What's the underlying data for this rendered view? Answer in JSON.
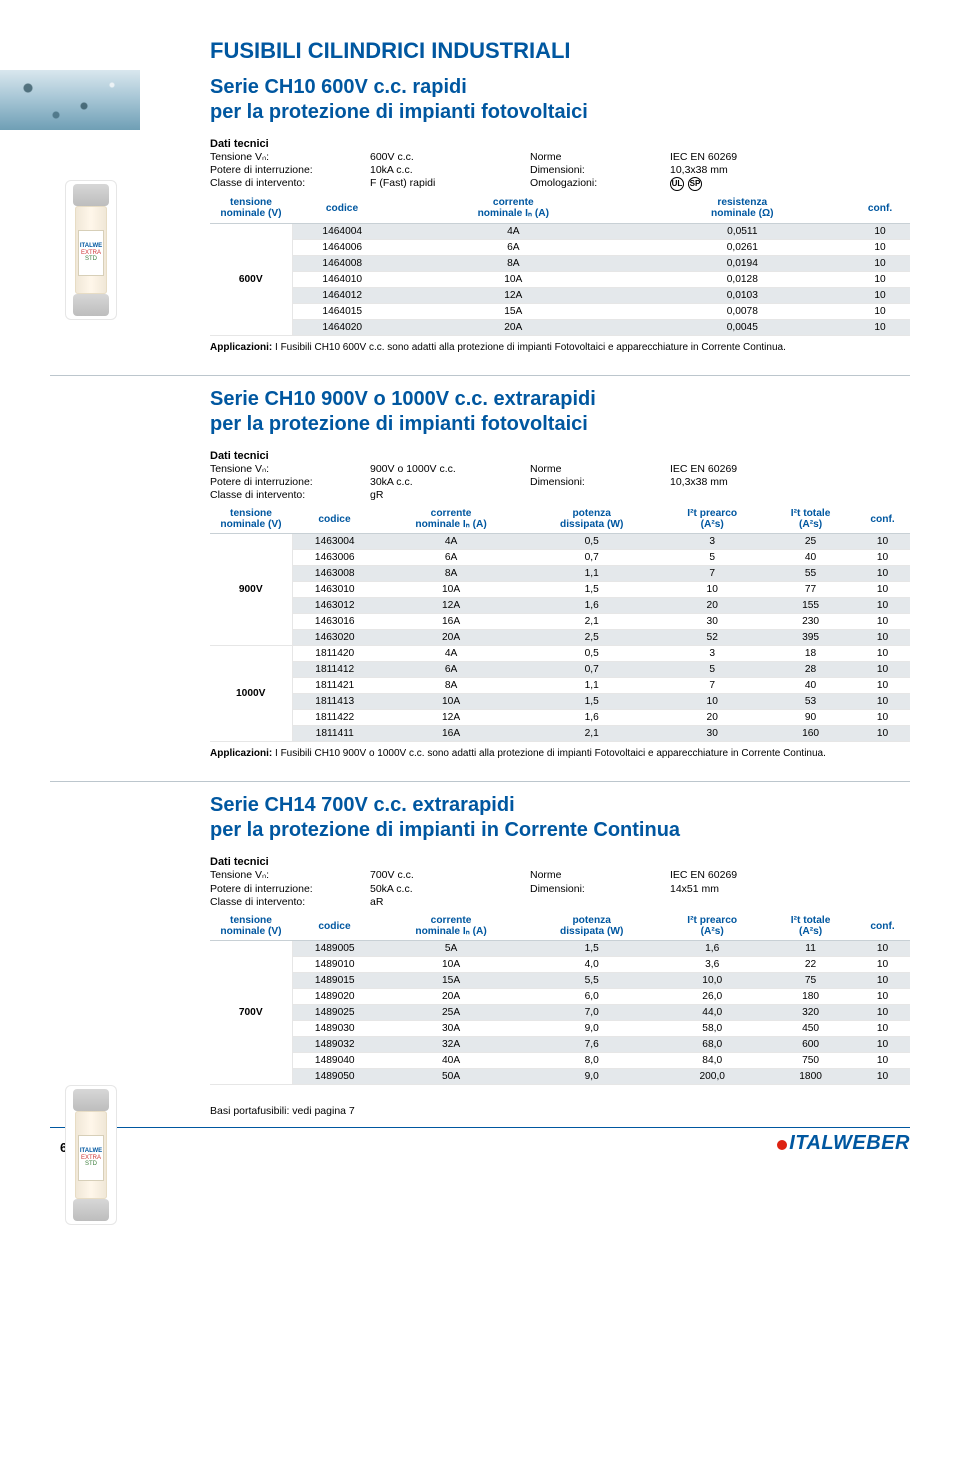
{
  "page": {
    "title": "FUSIBILI CILINDRICI INDUSTRIALI",
    "footer_page": "6",
    "brand_name": "ITALWEBER",
    "basi_text": "Basi portafusibili: vedi pagina 7"
  },
  "colors": {
    "heading": "#0057a0",
    "row_alt": "#e4e8eb",
    "rule": "#bcc6cd",
    "brand_dot": "#d21"
  },
  "section1": {
    "title_line1": "Serie CH10 600V c.c. rapidi",
    "title_line2": "per la protezione di impianti fotovoltaici",
    "dati_heading": "Dati tecnici",
    "specs": {
      "tensione_label": "Tensione Vₙ:",
      "tensione_value": "600V c.c.",
      "norme_label": "Norme",
      "norme_value": "IEC EN 60269",
      "potere_label": "Potere di interruzione:",
      "potere_value": "10kA c.c.",
      "dim_label": "Dimensioni:",
      "dim_value": "10,3x38 mm",
      "classe_label": "Classe di intervento:",
      "classe_value": "F (Fast) rapidi",
      "omolog_label": "Omologazioni:",
      "cert1": "UL",
      "cert2": "SP"
    },
    "table": {
      "headers": {
        "tensione": "tensione",
        "tensione_sub": "nominale (V)",
        "codice": "codice",
        "corrente": "corrente",
        "corrente_sub": "nominale Iₙ (A)",
        "resistenza": "resistenza",
        "resistenza_sub": "nominale (Ω)",
        "conf": "conf."
      },
      "voltage": "600V",
      "rows": [
        {
          "codice": "1464004",
          "corr": "4A",
          "res": "0,0511",
          "conf": "10"
        },
        {
          "codice": "1464006",
          "corr": "6A",
          "res": "0,0261",
          "conf": "10"
        },
        {
          "codice": "1464008",
          "corr": "8A",
          "res": "0,0194",
          "conf": "10"
        },
        {
          "codice": "1464010",
          "corr": "10A",
          "res": "0,0128",
          "conf": "10"
        },
        {
          "codice": "1464012",
          "corr": "12A",
          "res": "0,0103",
          "conf": "10"
        },
        {
          "codice": "1464015",
          "corr": "15A",
          "res": "0,0078",
          "conf": "10"
        },
        {
          "codice": "1464020",
          "corr": "20A",
          "res": "0,0045",
          "conf": "10"
        }
      ]
    },
    "applicazioni_label": "Applicazioni:",
    "applicazioni_text": " I Fusibili CH10 600V c.c. sono adatti alla protezione di impianti Fotovoltaici e apparecchiature in Corrente Continua."
  },
  "section2": {
    "title_line1": "Serie CH10 900V o 1000V c.c. extrarapidi",
    "title_line2": "per la protezione di impianti fotovoltaici",
    "dati_heading": "Dati tecnici",
    "specs": {
      "tensione_label": "Tensione Vₙ:",
      "tensione_value": "900V o 1000V c.c.",
      "norme_label": "Norme",
      "norme_value": "IEC EN 60269",
      "potere_label": "Potere di interruzione:",
      "potere_value": "30kA c.c.",
      "dim_label": "Dimensioni:",
      "dim_value": "10,3x38 mm",
      "classe_label": "Classe di intervento:",
      "classe_value": "gR"
    },
    "table": {
      "headers": {
        "tensione": "tensione",
        "tensione_sub": "nominale (V)",
        "codice": "codice",
        "corrente": "corrente",
        "corrente_sub": "nominale Iₙ (A)",
        "potenza": "potenza",
        "potenza_sub": "dissipata (W)",
        "i2t_pre": "I²t prearco",
        "i2t_pre_sub": "(A²s)",
        "i2t_tot": "I²t totale",
        "i2t_tot_sub": "(A²s)",
        "conf": "conf."
      },
      "group1_label": "900V",
      "group1_rows": [
        {
          "codice": "1463004",
          "corr": "4A",
          "pot": "0,5",
          "pre": "3",
          "tot": "25",
          "conf": "10"
        },
        {
          "codice": "1463006",
          "corr": "6A",
          "pot": "0,7",
          "pre": "5",
          "tot": "40",
          "conf": "10"
        },
        {
          "codice": "1463008",
          "corr": "8A",
          "pot": "1,1",
          "pre": "7",
          "tot": "55",
          "conf": "10"
        },
        {
          "codice": "1463010",
          "corr": "10A",
          "pot": "1,5",
          "pre": "10",
          "tot": "77",
          "conf": "10"
        },
        {
          "codice": "1463012",
          "corr": "12A",
          "pot": "1,6",
          "pre": "20",
          "tot": "155",
          "conf": "10"
        },
        {
          "codice": "1463016",
          "corr": "16A",
          "pot": "2,1",
          "pre": "30",
          "tot": "230",
          "conf": "10"
        },
        {
          "codice": "1463020",
          "corr": "20A",
          "pot": "2,5",
          "pre": "52",
          "tot": "395",
          "conf": "10"
        }
      ],
      "group2_label": "1000V",
      "group2_rows": [
        {
          "codice": "1811420",
          "corr": "4A",
          "pot": "0,5",
          "pre": "3",
          "tot": "18",
          "conf": "10"
        },
        {
          "codice": "1811412",
          "corr": "6A",
          "pot": "0,7",
          "pre": "5",
          "tot": "28",
          "conf": "10"
        },
        {
          "codice": "1811421",
          "corr": "8A",
          "pot": "1,1",
          "pre": "7",
          "tot": "40",
          "conf": "10"
        },
        {
          "codice": "1811413",
          "corr": "10A",
          "pot": "1,5",
          "pre": "10",
          "tot": "53",
          "conf": "10"
        },
        {
          "codice": "1811422",
          "corr": "12A",
          "pot": "1,6",
          "pre": "20",
          "tot": "90",
          "conf": "10"
        },
        {
          "codice": "1811411",
          "corr": "16A",
          "pot": "2,1",
          "pre": "30",
          "tot": "160",
          "conf": "10"
        }
      ]
    },
    "applicazioni_label": "Applicazioni:",
    "applicazioni_text": " I Fusibili CH10 900V o 1000V c.c. sono adatti alla protezione di impianti Fotovoltaici e apparecchiature in Corrente Continua."
  },
  "section3": {
    "title_line1": "Serie CH14 700V c.c. extrarapidi",
    "title_line2": "per la protezione di impianti in Corrente Continua",
    "dati_heading": "Dati tecnici",
    "specs": {
      "tensione_label": "Tensione Vₙ:",
      "tensione_value": "700V c.c.",
      "norme_label": "Norme",
      "norme_value": "IEC EN 60269",
      "potere_label": "Potere di interruzione:",
      "potere_value": "50kA c.c.",
      "dim_label": "Dimensioni:",
      "dim_value": "14x51 mm",
      "classe_label": "Classe di intervento:",
      "classe_value": "aR"
    },
    "table": {
      "headers": {
        "tensione": "tensione",
        "tensione_sub": "nominale (V)",
        "codice": "codice",
        "corrente": "corrente",
        "corrente_sub": "nominale Iₙ (A)",
        "potenza": "potenza",
        "potenza_sub": "dissipata (W)",
        "i2t_pre": "I²t prearco",
        "i2t_pre_sub": "(A²s)",
        "i2t_tot": "I²t totale",
        "i2t_tot_sub": "(A²s)",
        "conf": "conf."
      },
      "voltage": "700V",
      "rows": [
        {
          "codice": "1489005",
          "corr": "5A",
          "pot": "1,5",
          "pre": "1,6",
          "tot": "11",
          "conf": "10"
        },
        {
          "codice": "1489010",
          "corr": "10A",
          "pot": "4,0",
          "pre": "3,6",
          "tot": "22",
          "conf": "10"
        },
        {
          "codice": "1489015",
          "corr": "15A",
          "pot": "5,5",
          "pre": "10,0",
          "tot": "75",
          "conf": "10"
        },
        {
          "codice": "1489020",
          "corr": "20A",
          "pot": "6,0",
          "pre": "26,0",
          "tot": "180",
          "conf": "10"
        },
        {
          "codice": "1489025",
          "corr": "25A",
          "pot": "7,0",
          "pre": "44,0",
          "tot": "320",
          "conf": "10"
        },
        {
          "codice": "1489030",
          "corr": "30A",
          "pot": "9,0",
          "pre": "58,0",
          "tot": "450",
          "conf": "10"
        },
        {
          "codice": "1489032",
          "corr": "32A",
          "pot": "7,6",
          "pre": "68,0",
          "tot": "600",
          "conf": "10"
        },
        {
          "codice": "1489040",
          "corr": "40A",
          "pot": "8,0",
          "pre": "84,0",
          "tot": "750",
          "conf": "10"
        },
        {
          "codice": "1489050",
          "corr": "50A",
          "pot": "9,0",
          "pre": "200,0",
          "tot": "1800",
          "conf": "10"
        }
      ]
    }
  }
}
